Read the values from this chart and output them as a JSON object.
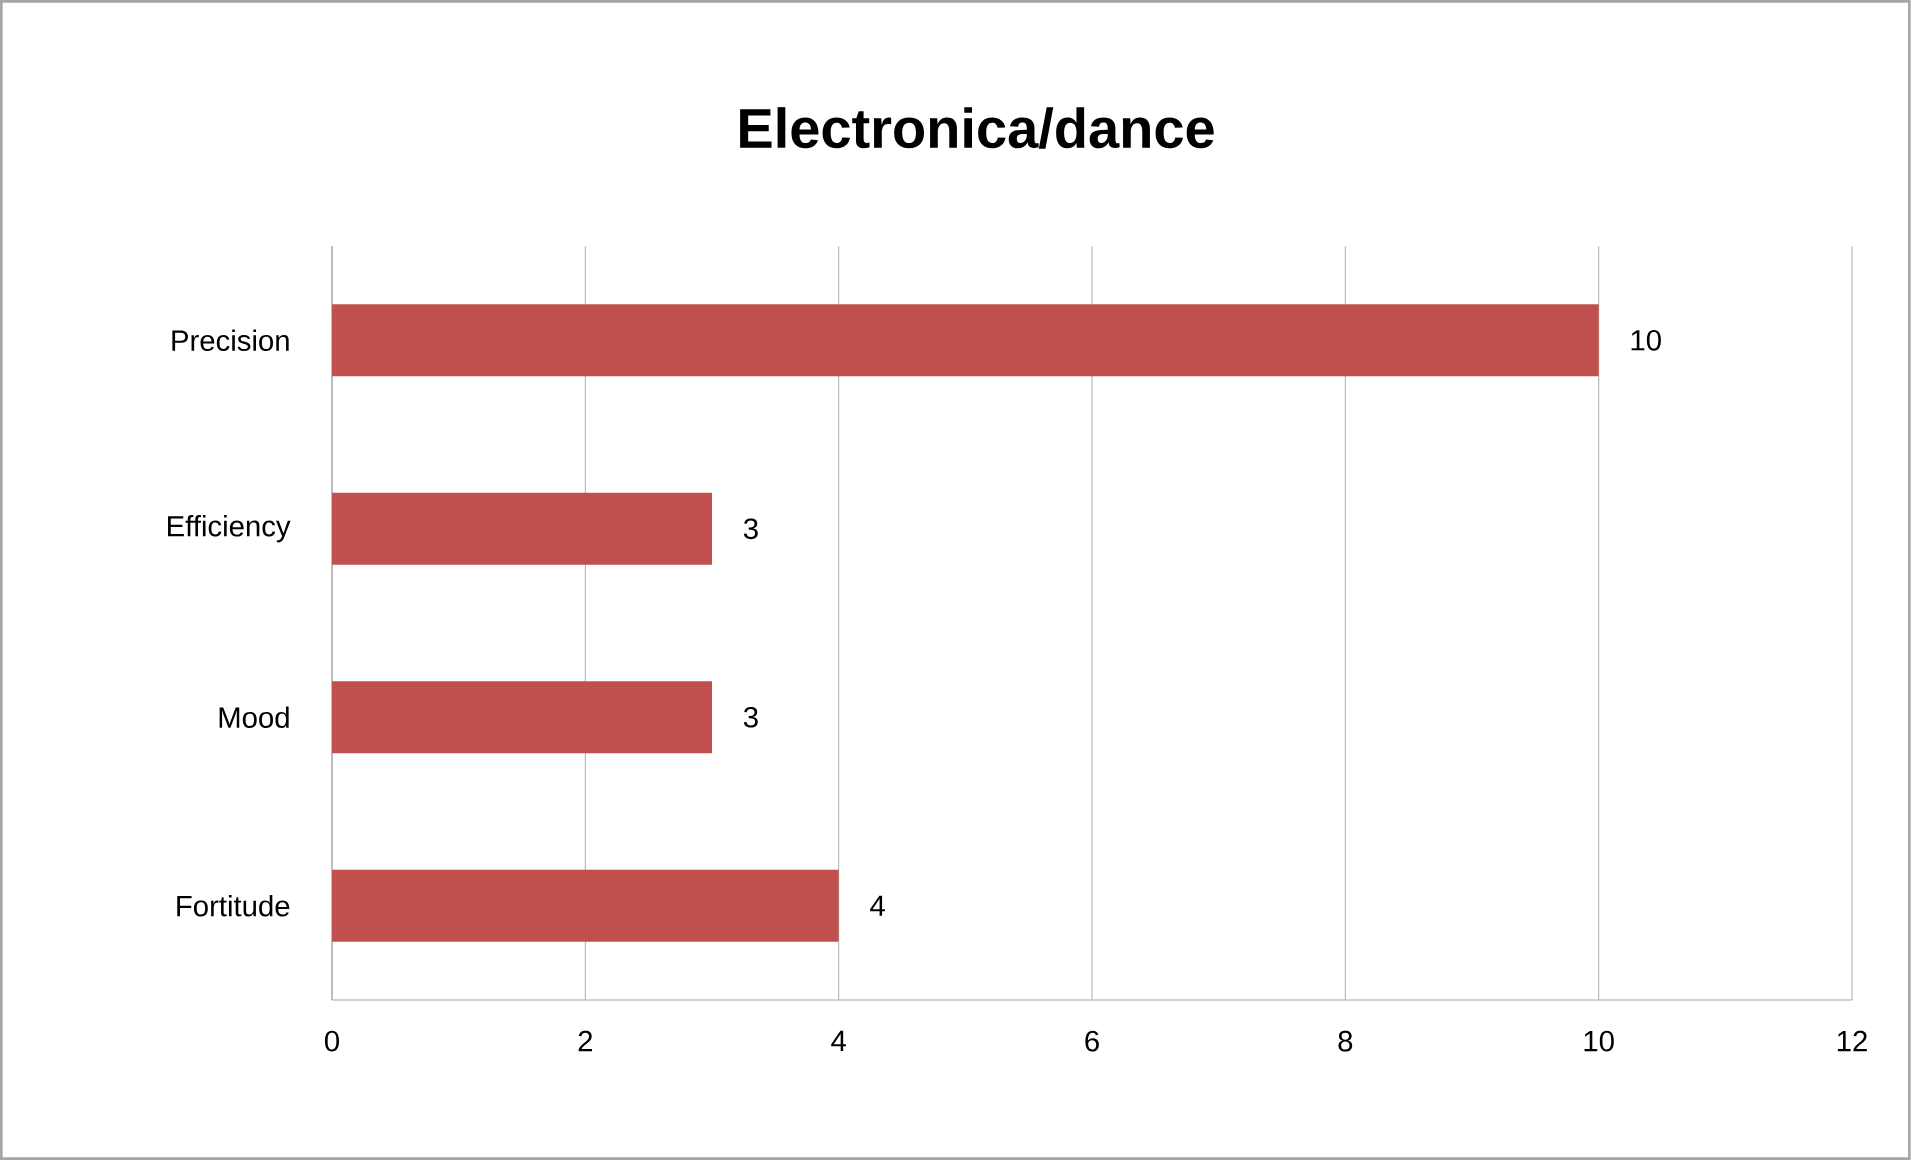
{
  "chart_data": {
    "type": "bar",
    "orientation": "horizontal",
    "title": "Electronica/dance",
    "categories": [
      "Precision",
      "Efficiency",
      "Mood",
      "Fortitude"
    ],
    "values": [
      10,
      3,
      3,
      4
    ],
    "color": "#c0504d",
    "xlim": [
      0,
      12
    ],
    "xticks": [
      0,
      2,
      4,
      6,
      8,
      10,
      12
    ],
    "grid": "x",
    "data_labels": true
  }
}
